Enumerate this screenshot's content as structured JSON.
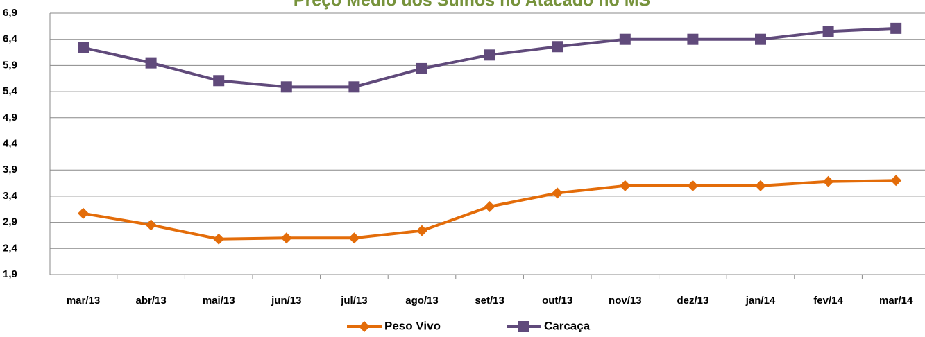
{
  "chart_data": {
    "type": "line",
    "title": "Preço Médio dos Suínos no Atacado no MS",
    "categories": [
      "mar/13",
      "abr/13",
      "mai/13",
      "jun/13",
      "jul/13",
      "ago/13",
      "set/13",
      "out/13",
      "nov/13",
      "dez/13",
      "jan/14",
      "fev/14",
      "mar/14"
    ],
    "series": [
      {
        "name": "Peso Vivo",
        "color": "#e36c09",
        "marker": "diamond",
        "values": [
          3.07,
          2.85,
          2.58,
          2.6,
          2.6,
          2.74,
          3.2,
          3.46,
          3.6,
          3.6,
          3.6,
          3.68,
          3.7
        ]
      },
      {
        "name": "Carcaça",
        "color": "#604a7b",
        "marker": "square",
        "values": [
          6.24,
          5.95,
          5.61,
          5.49,
          5.49,
          5.84,
          6.1,
          6.26,
          6.4,
          6.4,
          6.4,
          6.55,
          6.61
        ]
      }
    ],
    "ylim": [
      1.9,
      6.9
    ],
    "yticks": [
      {
        "value": 1.9,
        "label": "1,9"
      },
      {
        "value": 2.4,
        "label": "2,4"
      },
      {
        "value": 2.9,
        "label": "2,9"
      },
      {
        "value": 3.4,
        "label": "3,4"
      },
      {
        "value": 3.9,
        "label": "3,9"
      },
      {
        "value": 4.4,
        "label": "4,4"
      },
      {
        "value": 4.9,
        "label": "4,9"
      },
      {
        "value": 5.4,
        "label": "5,4"
      },
      {
        "value": 5.9,
        "label": "5,9"
      },
      {
        "value": 6.4,
        "label": "6,4"
      },
      {
        "value": 6.9,
        "label": "6,9"
      }
    ],
    "grid": true,
    "legend": "bottom"
  }
}
